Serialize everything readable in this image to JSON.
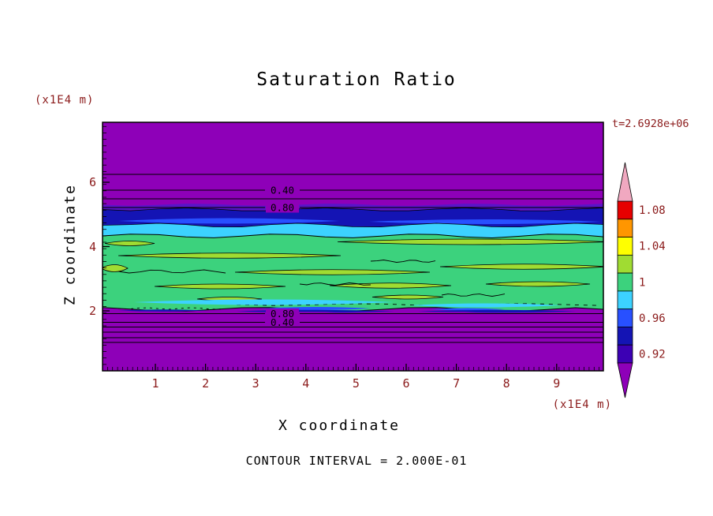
{
  "title": "Saturation Ratio",
  "time_label": "t=2.6928e+06",
  "y_axis_unit": "(x1E4 m)",
  "x_axis_unit": "(x1E4 m)",
  "y_axis_label": "Z coordinate",
  "x_axis_label": "X coordinate",
  "footer_note": "CONTOUR INTERVAL = 2.000E-01",
  "x_ticks": [
    "1",
    "2",
    "3",
    "4",
    "5",
    "6",
    "7",
    "8",
    "9"
  ],
  "y_ticks": [
    "2",
    "4",
    "6"
  ],
  "contour_labels": {
    "top": [
      "0.40",
      "0.80"
    ],
    "bottom": [
      "0.80",
      "0.40"
    ]
  },
  "colorbar": {
    "labels": [
      "1.08",
      "1.04",
      "1",
      "0.96",
      "0.92"
    ],
    "band_colors": [
      "#e60000",
      "#ff9600",
      "#ffff00",
      "#a0dc32",
      "#3cd27d",
      "#3cd2ff",
      "#2850ff",
      "#1414b4",
      "#3c00b4"
    ],
    "top_arrow_color": "#f0a8c0",
    "bottom_arrow_color": "#8e00b8"
  },
  "palette": {
    "purple": "#8e00b8",
    "indigo": "#5a14c8",
    "navy": "#1414b4",
    "blue": "#2850ff",
    "cyan": "#3cd2ff",
    "green": "#3cd27d",
    "chartreuse": "#a0dc32",
    "annotation_text": "#8b1a1a",
    "line_black": "#000000",
    "background": "#ffffff"
  },
  "chart_data": {
    "type": "heatmap",
    "title": "Saturation Ratio",
    "xlabel": "X coordinate (x1E4 m)",
    "ylabel": "Z coordinate (x1E4 m)",
    "x_ticks": [
      1,
      2,
      3,
      4,
      5,
      6,
      7,
      8,
      9
    ],
    "y_ticks": [
      2,
      4,
      6
    ],
    "x_range": [
      0,
      10
    ],
    "y_range": [
      0,
      7.7
    ],
    "time_annotation": "t=2.6928e+06",
    "contour_interval": 0.2,
    "colorbar_tick_values": [
      1.08,
      1.04,
      1,
      0.96,
      0.92
    ],
    "labeled_contours": [
      {
        "value": 0.4,
        "z": 5.75
      },
      {
        "value": 0.8,
        "z": 5.2
      },
      {
        "value": 0.8,
        "z": 1.95
      },
      {
        "value": 0.4,
        "z": 1.68
      }
    ],
    "layers": [
      {
        "z_from": 5.6,
        "z_to": 7.7,
        "saturation": "< 0.9 (purple, contour lines 0.40 and 0.80)"
      },
      {
        "z_from": 5.0,
        "z_to": 5.6,
        "saturation": "0.90-0.94 (navy/blue band)"
      },
      {
        "z_from": 4.5,
        "z_to": 5.0,
        "saturation": "0.94-0.98 (cyan band)"
      },
      {
        "z_from": 2.0,
        "z_to": 4.5,
        "saturation": "0.98-1.02 (green band with yellow-green patches 1.02-1.04)"
      },
      {
        "z_from": 0.0,
        "z_to": 1.9,
        "saturation": "< 0.9 (purple, contour lines 0.80 and 0.40)"
      }
    ],
    "legend_position": "right colorbar with arrow end caps",
    "grid": false
  }
}
